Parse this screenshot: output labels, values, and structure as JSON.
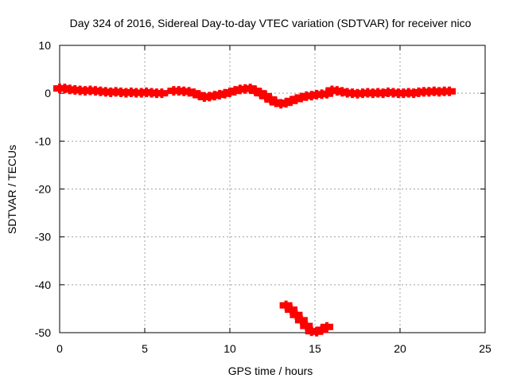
{
  "chart_data": {
    "type": "scatter",
    "title": "Day 324 of 2016, Sidereal Day-to-day VTEC variation (SDTVAR) for receiver nico",
    "xlabel": "GPS time / hours",
    "ylabel": "SDTVAR / TECUs",
    "xlim": [
      0,
      25
    ],
    "ylim": [
      -50,
      10
    ],
    "xticks": [
      0,
      5,
      10,
      15,
      20,
      25
    ],
    "yticks": [
      -50,
      -40,
      -30,
      -20,
      -10,
      0,
      10
    ],
    "grid": true,
    "marker_color": "#ff0000",
    "series": [
      {
        "name": "main",
        "x": [
          0.0,
          0.3,
          0.6,
          0.9,
          1.2,
          1.5,
          1.8,
          2.1,
          2.4,
          2.7,
          3.0,
          3.3,
          3.6,
          3.9,
          4.2,
          4.5,
          4.8,
          5.1,
          5.4,
          5.7,
          6.0,
          6.7,
          7.0,
          7.3,
          7.6,
          7.9,
          8.2,
          8.5,
          8.8,
          9.1,
          9.4,
          9.7,
          10.0,
          10.3,
          10.6,
          10.9,
          11.2,
          11.5,
          11.8,
          12.1,
          12.4,
          12.7,
          13.0,
          13.3,
          13.6,
          13.9,
          14.2,
          14.5,
          14.8,
          15.1,
          15.4,
          15.7,
          16.0,
          16.3,
          16.6,
          16.9,
          17.2,
          17.5,
          17.8,
          18.1,
          18.4,
          18.7,
          19.0,
          19.3,
          19.6,
          19.9,
          20.2,
          20.5,
          20.8,
          21.1,
          21.4,
          21.7,
          22.0,
          22.3,
          22.6,
          22.9
        ],
        "y": [
          1.0,
          1.0,
          0.8,
          0.7,
          0.6,
          0.5,
          0.6,
          0.5,
          0.4,
          0.3,
          0.2,
          0.3,
          0.2,
          0.1,
          0.2,
          0.1,
          0.1,
          0.2,
          0.1,
          0.0,
          0.0,
          0.5,
          0.5,
          0.4,
          0.3,
          0.0,
          -0.4,
          -0.8,
          -0.7,
          -0.5,
          -0.3,
          -0.1,
          0.2,
          0.5,
          0.8,
          0.9,
          1.0,
          0.5,
          0.0,
          -0.6,
          -1.3,
          -1.9,
          -2.2,
          -2.0,
          -1.6,
          -1.2,
          -0.9,
          -0.6,
          -0.5,
          -0.3,
          -0.2,
          -0.1,
          0.6,
          0.5,
          0.3,
          0.1,
          0.0,
          -0.1,
          0.0,
          0.1,
          0.0,
          0.1,
          0.0,
          0.2,
          0.1,
          0.0,
          0.0,
          0.1,
          0.0,
          0.2,
          0.3,
          0.3,
          0.4,
          0.3,
          0.4,
          0.4
        ]
      },
      {
        "name": "outlier",
        "x": [
          13.3,
          13.6,
          13.9,
          14.2,
          14.5,
          14.8,
          15.1,
          15.4,
          15.7
        ],
        "y": [
          -44.3,
          -45.2,
          -46.3,
          -47.4,
          -48.6,
          -49.7,
          -49.8,
          -49.4,
          -48.8
        ]
      }
    ]
  }
}
